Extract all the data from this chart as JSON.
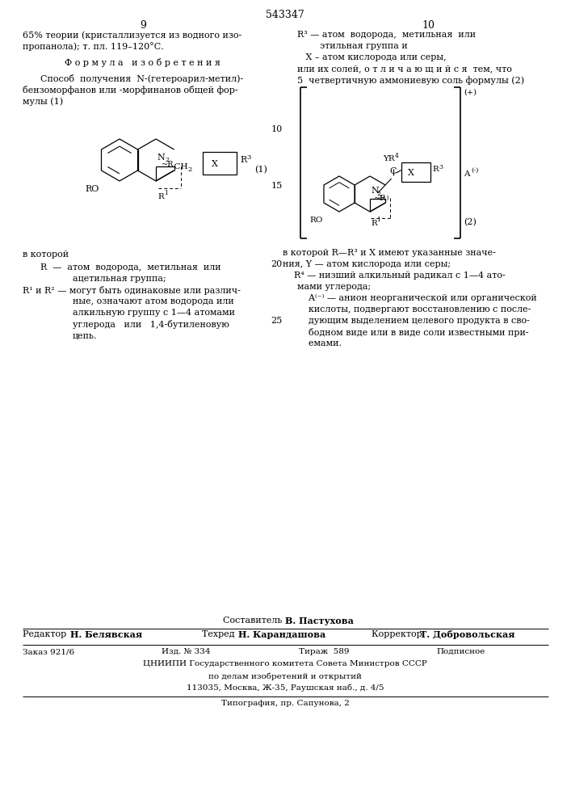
{
  "background_color": "#ffffff",
  "page_number_center": "543347",
  "page_num_left": "9",
  "page_num_right": "10"
}
